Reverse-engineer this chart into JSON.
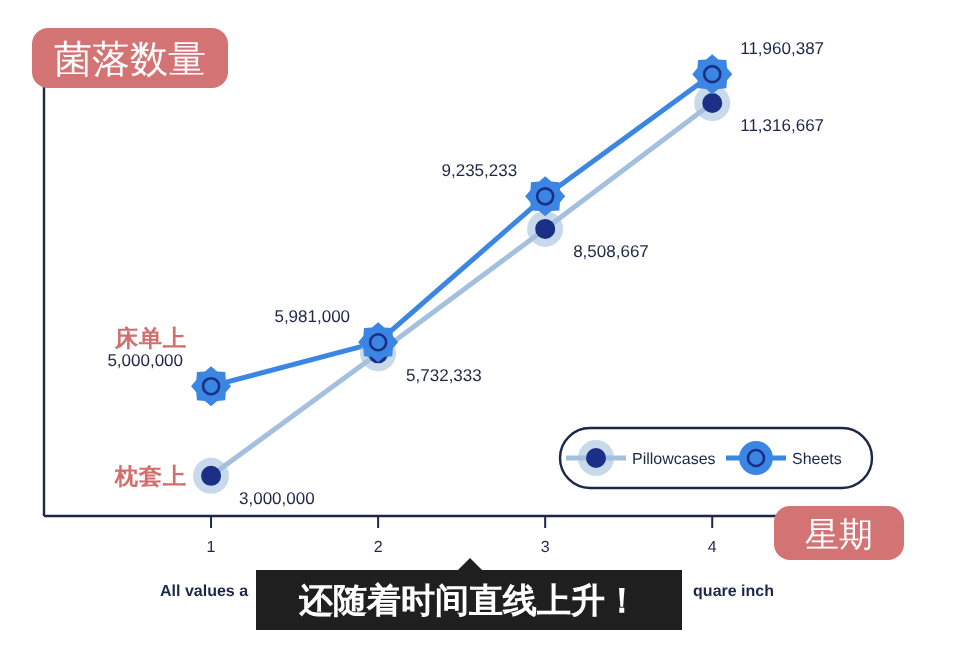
{
  "chart_data": {
    "type": "line",
    "ylabel": "菌落数量",
    "xlabel": "星期",
    "x": [
      1,
      2,
      3,
      4
    ],
    "xlim": [
      0,
      5.1
    ],
    "xticks": [
      1,
      2,
      3,
      4
    ],
    "series": [
      {
        "name": "Pillowcases",
        "color": "#a3c0df",
        "marker": "circle",
        "values": [
          3000000,
          5732333,
          8508667,
          11316667
        ],
        "value_labels": [
          "3,000,000",
          "5,732,333",
          "8,508,667",
          "11,316,667"
        ]
      },
      {
        "name": "Sheets",
        "color": "#3b86e3",
        "marker": "star",
        "values": [
          5000000,
          5981000,
          9235233,
          11960387
        ],
        "value_labels": [
          "5,000,000",
          "5,981,000",
          "9,235,233",
          "11,960,387"
        ]
      }
    ],
    "legend": "bottom right",
    "annotations": [
      {
        "text": "床单上",
        "x": 1,
        "y": 5000000
      },
      {
        "text": "枕套上",
        "x": 1,
        "y": 3000000
      },
      "All values a",
      "quare inch",
      "还随着时间直线上升！"
    ]
  }
}
